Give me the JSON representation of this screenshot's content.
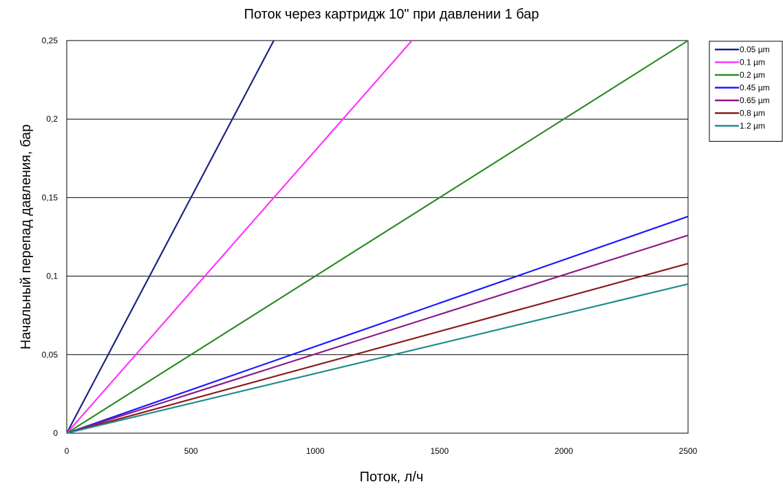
{
  "chart_data": {
    "type": "line",
    "title": "Поток через картридж 10\" при давлении 1 бар",
    "xlabel": "Поток, л/ч",
    "ylabel": "Начальный перепад давления, бар",
    "xlim": [
      0,
      2500
    ],
    "ylim": [
      0,
      0.25
    ],
    "x_ticks": [
      "0",
      "500",
      "1000",
      "1500",
      "2000",
      "2500"
    ],
    "y_ticks": [
      "0",
      "0,05",
      "0,1",
      "0,15",
      "0,2",
      "0,25"
    ],
    "grid": "horizontal",
    "legend_position": "top-right",
    "series": [
      {
        "name": "0.05 µm",
        "color": "#1a237e",
        "x": [
          0,
          833
        ],
        "y": [
          0,
          0.25
        ]
      },
      {
        "name": "0.1 µm",
        "color": "#ff33ff",
        "x": [
          0,
          1389
        ],
        "y": [
          0,
          0.25
        ]
      },
      {
        "name": "0.2 µm",
        "color": "#2e8b24",
        "x": [
          0,
          2500
        ],
        "y": [
          0,
          0.25
        ]
      },
      {
        "name": "0.45 µm",
        "color": "#1a1aff",
        "x": [
          0,
          2500
        ],
        "y": [
          0,
          0.138
        ]
      },
      {
        "name": "0.65 µm",
        "color": "#8b1a8b",
        "x": [
          0,
          2500
        ],
        "y": [
          0,
          0.126
        ]
      },
      {
        "name": "0.8 µm",
        "color": "#8b1a1a",
        "x": [
          0,
          2500
        ],
        "y": [
          0,
          0.108
        ]
      },
      {
        "name": "1.2 µm",
        "color": "#1f8c8c",
        "x": [
          0,
          2500
        ],
        "y": [
          0,
          0.095
        ]
      }
    ]
  }
}
